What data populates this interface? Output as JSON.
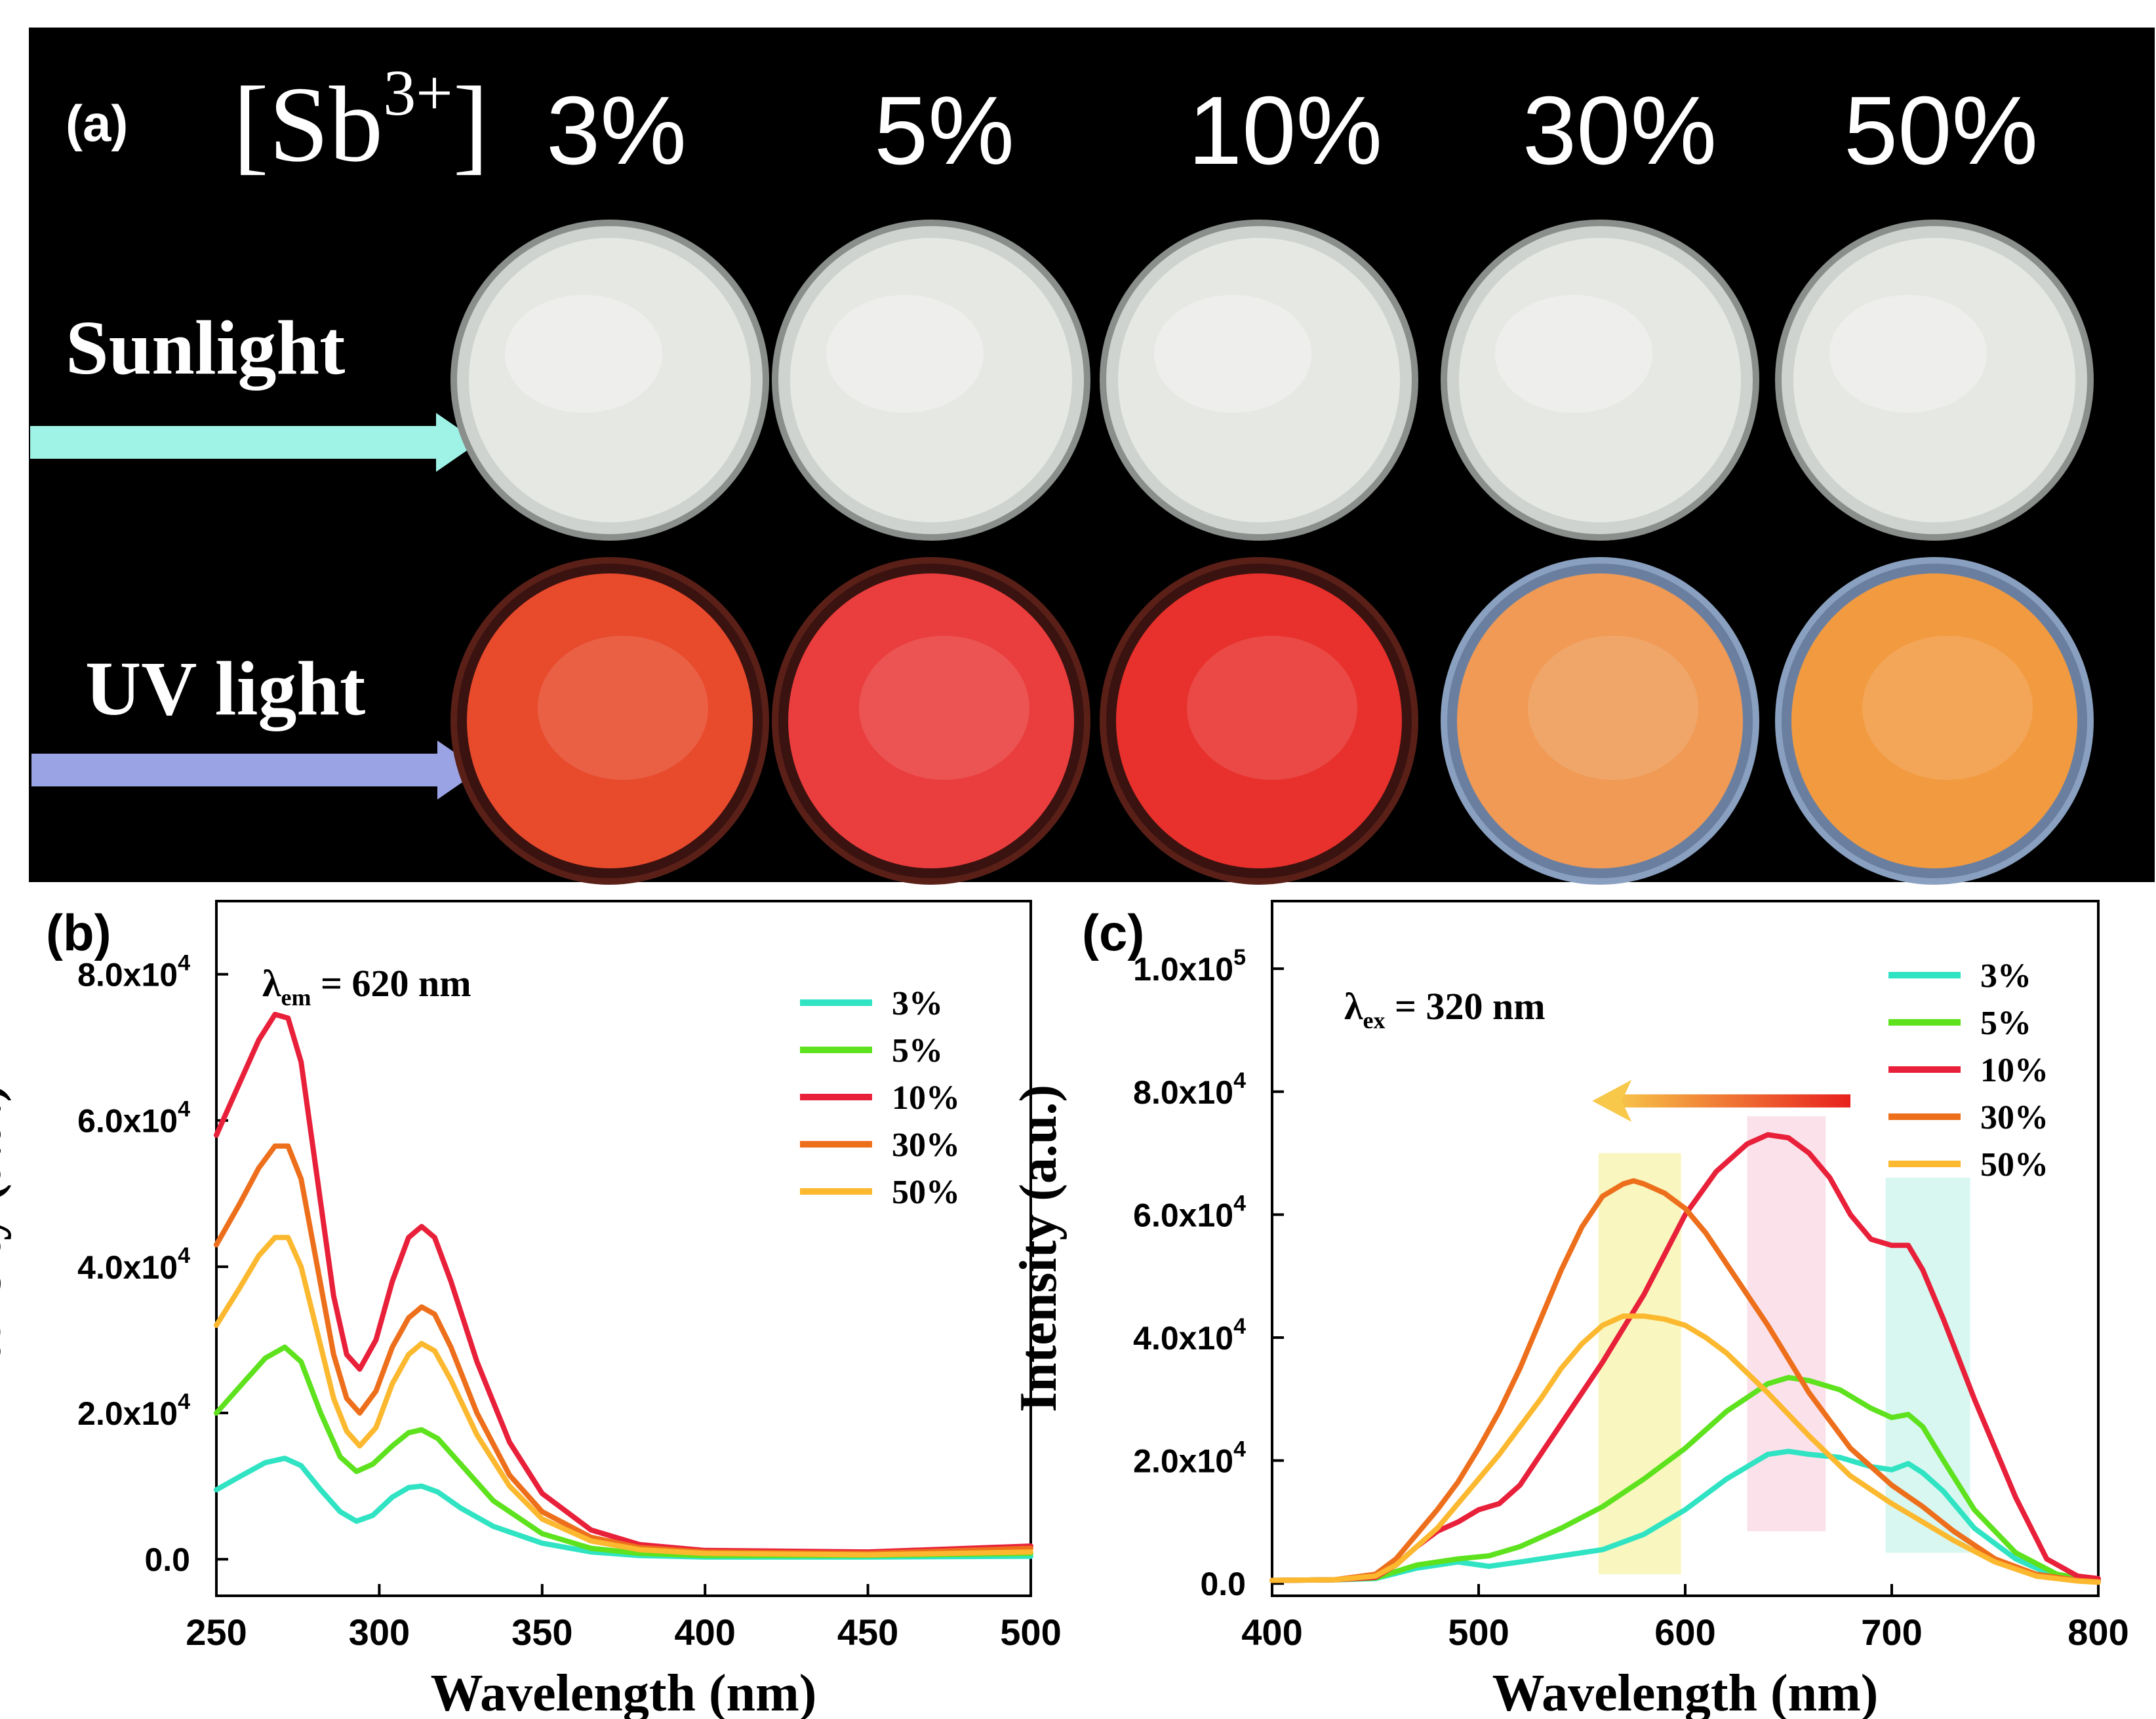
{
  "panel_a": {
    "label": "(a)",
    "sb_prefix": "[Sb",
    "sb_superscript": "3+",
    "sb_suffix": "]",
    "concentrations": [
      "3%",
      "5%",
      "10%",
      "30%",
      "50%"
    ],
    "row_sunlight": "Sunlight",
    "row_uv": "UV light",
    "sunlight_arrow_color": "#9ff2e6",
    "uv_arrow_color": "#9aa4e4",
    "uv_sample_colors": [
      "#e84a2c",
      "#ea3d3d",
      "#e8302c",
      "#f09a55",
      "#f29a40"
    ]
  },
  "chart_data": [
    {
      "panel": "(b)",
      "type": "line",
      "title": "",
      "annotation": {
        "symbol": "λ",
        "subscript": "em",
        "text": " = 620 nm"
      },
      "xlabel": "Wavelength (nm)",
      "ylabel": "Intensity (a.u.)",
      "xlim": [
        250,
        500
      ],
      "ylim": [
        -5000,
        90000
      ],
      "xticks": [
        "250",
        "300",
        "350",
        "400",
        "450",
        "500"
      ],
      "xtick_values": [
        250,
        300,
        350,
        400,
        450,
        500
      ],
      "yticks": [
        {
          "value": 0,
          "mantissa": "0.0",
          "exp": ""
        },
        {
          "value": 20000,
          "mantissa": "2.0x10",
          "exp": "4"
        },
        {
          "value": 40000,
          "mantissa": "4.0x10",
          "exp": "4"
        },
        {
          "value": 60000,
          "mantissa": "6.0x10",
          "exp": "4"
        },
        {
          "value": 80000,
          "mantissa": "8.0x10",
          "exp": "4"
        }
      ],
      "legend": "top-right",
      "series": [
        {
          "name": "3%",
          "color": "#2fe3c3",
          "x": [
            250,
            258,
            265,
            271,
            276,
            282,
            288,
            293,
            298,
            304,
            309,
            313,
            318,
            325,
            335,
            350,
            365,
            380,
            400,
            450,
            500
          ],
          "y": [
            9500,
            11500,
            13200,
            13800,
            12800,
            9500,
            6500,
            5200,
            6000,
            8500,
            9800,
            10000,
            9200,
            7000,
            4500,
            2200,
            1000,
            500,
            300,
            300,
            400
          ]
        },
        {
          "name": "5%",
          "color": "#5ee21e",
          "x": [
            250,
            258,
            265,
            271,
            276,
            282,
            288,
            293,
            298,
            304,
            309,
            313,
            318,
            325,
            335,
            350,
            365,
            380,
            400,
            450,
            500
          ],
          "y": [
            20000,
            24000,
            27500,
            29000,
            27000,
            20000,
            14000,
            12000,
            13000,
            15500,
            17300,
            17700,
            16500,
            13000,
            8000,
            3500,
            1500,
            800,
            500,
            500,
            800
          ]
        },
        {
          "name": "10%",
          "color": "#e8203a",
          "x": [
            250,
            257,
            263,
            268,
            272,
            276,
            281,
            286,
            290,
            294,
            299,
            304,
            309,
            313,
            317,
            322,
            330,
            340,
            350,
            365,
            380,
            400,
            450,
            500
          ],
          "y": [
            58000,
            65000,
            71000,
            74500,
            74000,
            68000,
            52000,
            36000,
            28000,
            26000,
            30000,
            38000,
            44000,
            45500,
            44000,
            38000,
            27000,
            16000,
            9000,
            4000,
            2000,
            1200,
            1000,
            1800
          ]
        },
        {
          "name": "30%",
          "color": "#ed6f1c",
          "x": [
            250,
            257,
            263,
            268,
            272,
            276,
            281,
            286,
            290,
            294,
            299,
            304,
            309,
            313,
            317,
            322,
            330,
            340,
            350,
            365,
            380,
            400,
            450,
            500
          ],
          "y": [
            43000,
            48500,
            53500,
            56500,
            56500,
            52000,
            40000,
            28000,
            22000,
            20000,
            23000,
            29000,
            33000,
            34500,
            33500,
            29000,
            20000,
            11500,
            6500,
            3000,
            1600,
            1000,
            800,
            1500
          ]
        },
        {
          "name": "50%",
          "color": "#fcb82e",
          "x": [
            250,
            257,
            263,
            268,
            272,
            276,
            281,
            286,
            290,
            294,
            299,
            304,
            309,
            313,
            317,
            322,
            330,
            340,
            350,
            365,
            380,
            400,
            450,
            500
          ],
          "y": [
            32000,
            37000,
            41500,
            44000,
            44000,
            40000,
            31000,
            22000,
            17500,
            15500,
            18000,
            24000,
            28000,
            29500,
            28500,
            24500,
            17000,
            10000,
            5500,
            2500,
            1300,
            800,
            600,
            1000
          ]
        }
      ]
    },
    {
      "panel": "(c)",
      "type": "line",
      "title": "",
      "annotation": {
        "symbol": "λ",
        "subscript": "ex",
        "text": " = 320 nm"
      },
      "xlabel": "Wavelength (nm)",
      "ylabel": "Intensity (a.u.)",
      "xlim": [
        400,
        800
      ],
      "ylim": [
        -2000,
        111000
      ],
      "xticks": [
        "400",
        "500",
        "600",
        "700",
        "800"
      ],
      "xtick_values": [
        400,
        500,
        600,
        700,
        800
      ],
      "yticks": [
        {
          "value": 0,
          "mantissa": "0.0",
          "exp": ""
        },
        {
          "value": 20000,
          "mantissa": "2.0x10",
          "exp": "4"
        },
        {
          "value": 40000,
          "mantissa": "4.0x10",
          "exp": "4"
        },
        {
          "value": 60000,
          "mantissa": "6.0x10",
          "exp": "4"
        },
        {
          "value": 80000,
          "mantissa": "8.0x10",
          "exp": "4"
        },
        {
          "value": 100000,
          "mantissa": "1.0x10",
          "exp": "5"
        }
      ],
      "legend": "top-right",
      "shaded_bands": [
        {
          "x0": 558,
          "x1": 598,
          "y0": 1500,
          "y1": 70000,
          "color": "#f4f08a"
        },
        {
          "x0": 630,
          "x1": 668,
          "y0": 8500,
          "y1": 76000,
          "color": "#f7c8d8"
        },
        {
          "x0": 697,
          "x1": 738,
          "y0": 5000,
          "y1": 66000,
          "color": "#b8f0e6"
        }
      ],
      "arrow": {
        "from": 680,
        "to": 555,
        "value": 78500
      },
      "series": [
        {
          "name": "3%",
          "color": "#2fe3c3",
          "x": [
            400,
            430,
            450,
            470,
            490,
            505,
            520,
            540,
            560,
            580,
            600,
            620,
            640,
            650,
            660,
            675,
            690,
            700,
            708,
            715,
            725,
            740,
            760,
            780,
            800
          ],
          "y": [
            500,
            600,
            800,
            2500,
            3500,
            2800,
            3500,
            4500,
            5500,
            8000,
            12000,
            17000,
            21000,
            21500,
            21000,
            20500,
            19000,
            18500,
            19500,
            18000,
            15000,
            9000,
            4000,
            1000,
            300
          ]
        },
        {
          "name": "5%",
          "color": "#5ee21e",
          "x": [
            400,
            430,
            450,
            470,
            490,
            505,
            520,
            540,
            560,
            580,
            600,
            620,
            640,
            650,
            660,
            675,
            690,
            700,
            708,
            715,
            725,
            740,
            760,
            780,
            800
          ],
          "y": [
            500,
            600,
            900,
            3000,
            4000,
            4500,
            6000,
            9000,
            12500,
            17000,
            22000,
            28000,
            32500,
            33500,
            33000,
            31500,
            28500,
            27000,
            27500,
            25500,
            20000,
            12000,
            5000,
            1500,
            400
          ]
        },
        {
          "name": "10%",
          "color": "#e8203a",
          "x": [
            400,
            430,
            450,
            460,
            470,
            480,
            490,
            500,
            510,
            520,
            540,
            560,
            580,
            600,
            615,
            630,
            640,
            650,
            660,
            670,
            680,
            690,
            700,
            708,
            715,
            725,
            740,
            760,
            775,
            790,
            800
          ],
          "y": [
            500,
            600,
            1000,
            3000,
            6000,
            8500,
            10000,
            12000,
            13000,
            16000,
            26000,
            36000,
            47000,
            60000,
            67000,
            71500,
            73000,
            72500,
            70000,
            66000,
            60000,
            56000,
            55000,
            55000,
            51000,
            43000,
            30000,
            14000,
            4000,
            1200,
            800
          ]
        },
        {
          "name": "30%",
          "color": "#ed6f1c",
          "x": [
            400,
            430,
            450,
            460,
            470,
            480,
            490,
            500,
            510,
            520,
            530,
            540,
            550,
            560,
            570,
            575,
            580,
            590,
            600,
            610,
            620,
            640,
            660,
            680,
            700,
            715,
            730,
            750,
            770,
            790,
            800
          ],
          "y": [
            500,
            600,
            1500,
            4000,
            8000,
            12000,
            16500,
            22000,
            28000,
            35000,
            43000,
            51000,
            58000,
            63000,
            65000,
            65500,
            65000,
            63500,
            61000,
            57000,
            52000,
            42000,
            31000,
            22000,
            16000,
            12500,
            8500,
            4000,
            1500,
            500,
            300
          ]
        },
        {
          "name": "50%",
          "color": "#fcb82e",
          "x": [
            400,
            430,
            450,
            460,
            470,
            480,
            490,
            500,
            510,
            520,
            530,
            540,
            550,
            560,
            570,
            580,
            590,
            600,
            610,
            620,
            640,
            660,
            680,
            700,
            715,
            730,
            750,
            770,
            790,
            800
          ],
          "y": [
            500,
            600,
            1200,
            3000,
            6000,
            9000,
            13000,
            17000,
            21000,
            25500,
            30000,
            35000,
            39000,
            42000,
            43500,
            43500,
            43000,
            42000,
            40000,
            37500,
            31000,
            24000,
            17500,
            13000,
            10000,
            7000,
            3500,
            1200,
            400,
            200
          ]
        }
      ]
    }
  ]
}
